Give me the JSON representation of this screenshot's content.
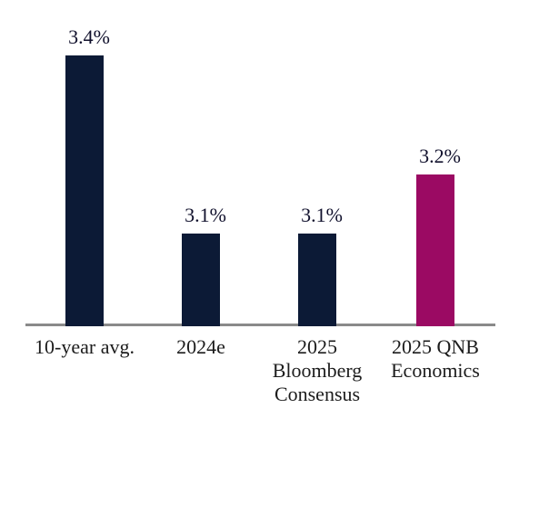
{
  "chart_data": {
    "type": "bar",
    "orientation": "vertical",
    "categories": [
      "10-year avg.",
      "2024e",
      "2025 Bloomberg Consensus",
      "2025 QNB Economics"
    ],
    "categories_display": [
      "10-year avg.",
      "2024e",
      "2025\nBloomberg\nConsensus",
      "2025 QNB\nEconomics"
    ],
    "values": [
      3.4,
      3.1,
      3.1,
      3.2
    ],
    "value_labels": [
      "3.4%",
      "3.1%",
      "3.1%",
      "3.2%"
    ],
    "unit": "%",
    "bar_colors": [
      "#0c1a36",
      "#0c1a36",
      "#0c1a36",
      "#9b0a63"
    ],
    "colors": {
      "navy": "#0c1a36",
      "magenta": "#9b0a63",
      "axis_line": "#8a8a8a",
      "value_label_text": "#10102c",
      "category_label_text": "#1c1c1c",
      "background": "#ffffff"
    },
    "xlabel": "",
    "ylabel": "",
    "ylim": [
      2.95,
      3.45
    ],
    "grid": false,
    "legend_position": "none"
  }
}
